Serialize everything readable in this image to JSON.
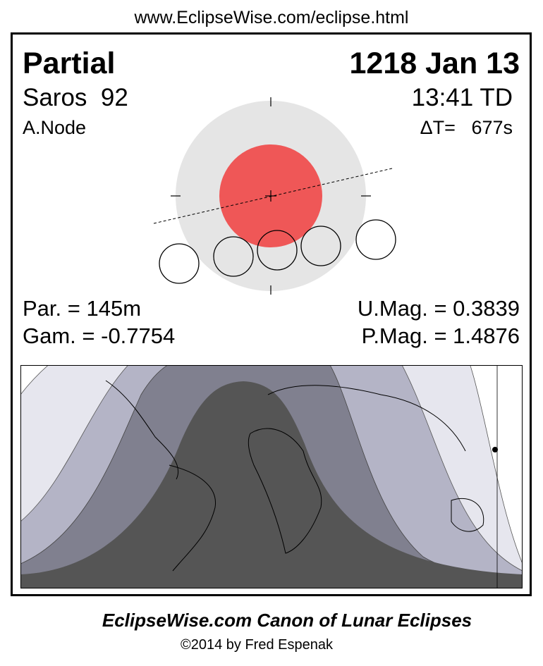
{
  "header": {
    "url": "www.EclipseWise.com/eclipse.html"
  },
  "panel": {
    "eclipse_type": "Partial",
    "date": "1218 Jan 13",
    "saros": "Saros  92",
    "time": "13:41 TD",
    "node": "A.Node",
    "delta_t": "ΔT=   677s",
    "parameters": {
      "par": "Par. = 145m",
      "gamma": "Gam. = -0.7754",
      "umag": "U.Mag. = 0.3839",
      "pmag": "P.Mag. = 1.4876"
    }
  },
  "footer": {
    "title": "EclipseWise.com Canon of Lunar Eclipses",
    "copyright": "©2014 by Fred Espenak"
  }
}
